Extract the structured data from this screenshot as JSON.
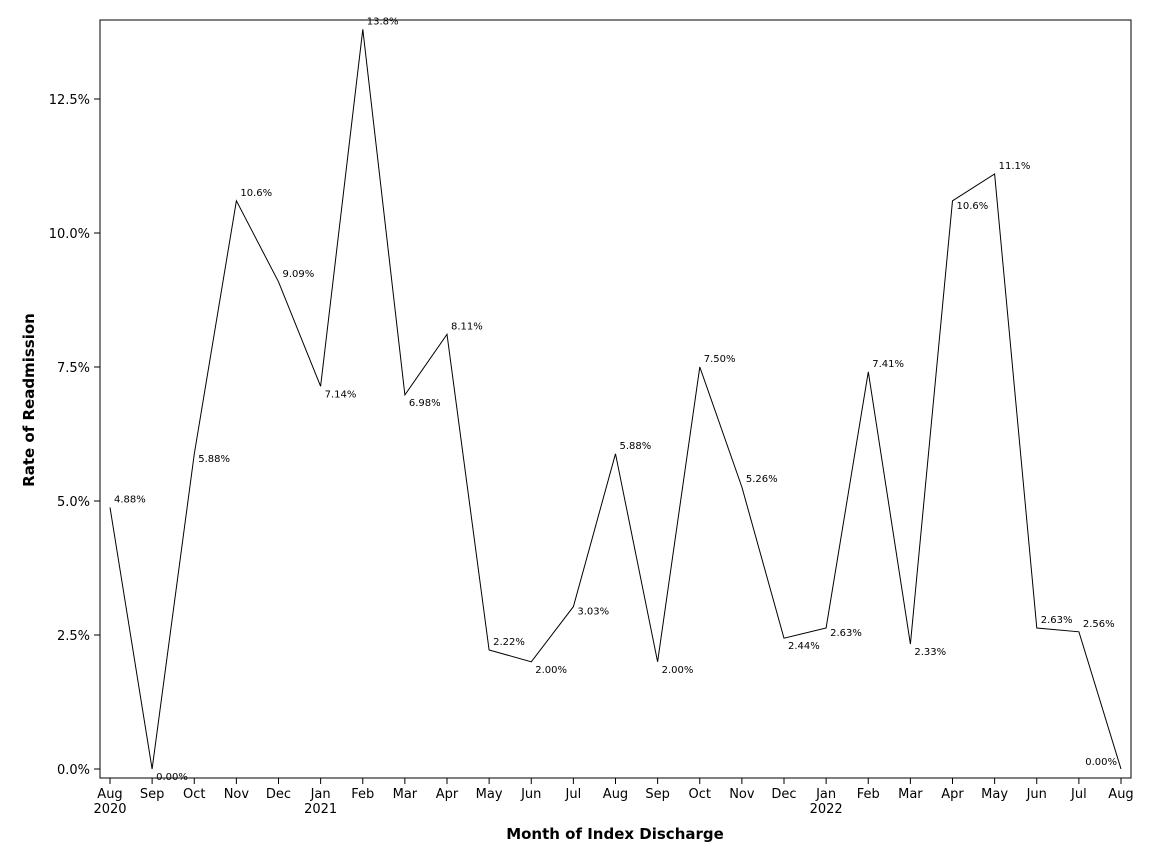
{
  "chart_data": {
    "type": "line",
    "title": "",
    "xlabel": "Month of Index Discharge",
    "ylabel": "Rate of Readmission",
    "ylim": [
      0,
      14
    ],
    "yticks": [
      "0.0%",
      "2.5%",
      "5.0%",
      "7.5%",
      "10.0%",
      "12.5%"
    ],
    "ytick_values": [
      0,
      2.5,
      5.0,
      7.5,
      10.0,
      12.5
    ],
    "grid": false,
    "legend": "none",
    "line_color": "#000000",
    "x_month_labels": [
      "Aug",
      "Sep",
      "Oct",
      "Nov",
      "Dec",
      "Jan",
      "Feb",
      "Mar",
      "Apr",
      "May",
      "Jun",
      "Jul",
      "Aug",
      "Sep",
      "Oct",
      "Nov",
      "Dec",
      "Jan",
      "Feb",
      "Mar",
      "Apr",
      "May",
      "Jun",
      "Jul",
      "Aug"
    ],
    "x_year_labels": [
      "2020",
      "",
      "",
      "",
      "",
      "2021",
      "",
      "",
      "",
      "",
      "",
      "",
      "",
      "",
      "",
      "",
      "",
      "2022",
      "",
      "",
      "",
      "",
      "",
      "",
      ""
    ],
    "x_dates": [
      "2020-08",
      "2020-09",
      "2020-10",
      "2020-11",
      "2020-12",
      "2021-01",
      "2021-02",
      "2021-03",
      "2021-04",
      "2021-05",
      "2021-06",
      "2021-07",
      "2021-08",
      "2021-09",
      "2021-10",
      "2021-11",
      "2021-12",
      "2022-01",
      "2022-02",
      "2022-03",
      "2022-04",
      "2022-05",
      "2022-06",
      "2022-07",
      "2022-08"
    ],
    "series": [
      {
        "values": [
          4.88,
          0.0,
          5.88,
          10.6,
          9.09,
          7.14,
          13.8,
          6.98,
          8.11,
          2.22,
          2.0,
          3.03,
          5.88,
          2.0,
          7.5,
          5.26,
          2.44,
          2.63,
          7.41,
          2.33,
          10.6,
          11.1,
          2.63,
          2.56,
          0.0
        ],
        "labels": [
          "4.88%",
          "0.00%",
          "5.88%",
          "10.6%",
          "9.09%",
          "7.14%",
          "13.8%",
          "6.98%",
          "8.11%",
          "2.22%",
          "2.00%",
          "3.03%",
          "5.88%",
          "2.00%",
          "7.50%",
          "5.26%",
          "2.44%",
          "2.63%",
          "7.41%",
          "2.33%",
          "10.6%",
          "11.1%",
          "2.63%",
          "2.56%",
          "0.00%"
        ]
      }
    ]
  }
}
